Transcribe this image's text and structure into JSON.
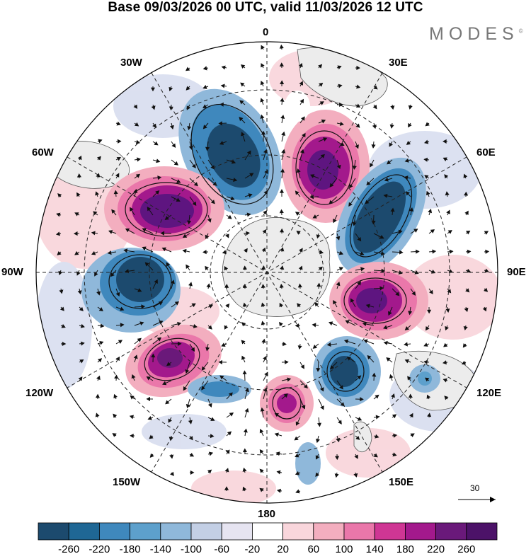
{
  "header": {
    "title": "Base 09/03/2026 00 UTC, valid 11/03/2026 12 UTC",
    "brand": "MODES",
    "brand_mark": "©"
  },
  "map": {
    "projection": "polar stereographic (south pole)",
    "longitude_labels": {
      "top": "0",
      "top_right_1": "30E",
      "top_right_2": "60E",
      "right": "90E",
      "bottom_right_1": "120E",
      "bottom_right_2": "150E",
      "bottom": "180",
      "bottom_left_1": "150W",
      "bottom_left_2": "120W",
      "left": "90W",
      "top_left_2": "60W",
      "top_left_1": "30W"
    },
    "vector_reference": {
      "value": "30"
    }
  },
  "colorbar": {
    "ticks": [
      "-260",
      "-220",
      "-180",
      "-140",
      "-100",
      "-60",
      "-20",
      "20",
      "60",
      "100",
      "140",
      "180",
      "220",
      "260"
    ],
    "colors": [
      "#1c4a6e",
      "#1f6795",
      "#3f88bd",
      "#5da0cc",
      "#8fb8da",
      "#c3cfe5",
      "#e6e4f1",
      "#ffffff",
      "#f9d6dc",
      "#f3aebf",
      "#ea77aa",
      "#cf3694",
      "#a3198c",
      "#6a197a",
      "#4c1268"
    ]
  },
  "anomaly_colors": {
    "neg_strong": "#1c4a6e",
    "neg_mid": "#3f88bd",
    "neg_weak": "#8fb8da",
    "neg_faint": "#dadff0",
    "pos_faint": "#f9d6dc",
    "pos_weak": "#f3aebf",
    "pos_mid": "#ea77aa",
    "pos_strong": "#a3198c",
    "pos_core": "#5e1580",
    "land": "#ececec"
  }
}
